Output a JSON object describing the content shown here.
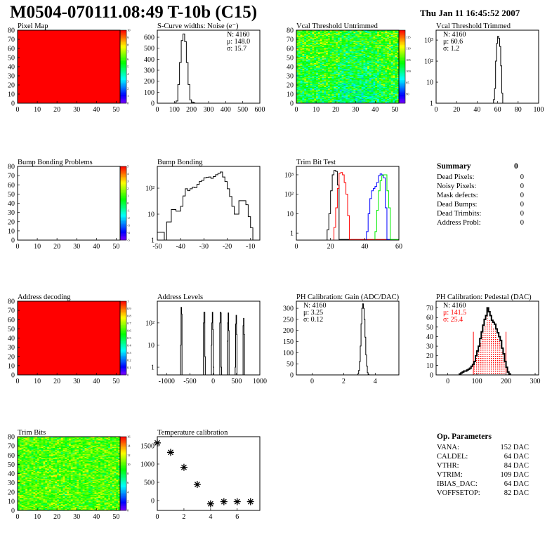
{
  "header": {
    "title": "M0504-070111.08:49 T-10b (C15)",
    "date": "Thu Jan 11 16:45:52 2007"
  },
  "palette": "rainbow",
  "chart_data": [
    {
      "id": "pixelmap",
      "type": "heatmap",
      "title": "Pixel Map",
      "xlim": [
        0,
        52
      ],
      "ylim": [
        0,
        80
      ],
      "xticks": [
        0,
        10,
        20,
        30,
        40,
        50
      ],
      "yticks": [
        0,
        10,
        20,
        30,
        40,
        50,
        60,
        70,
        80
      ],
      "zlim": [
        0,
        10
      ],
      "zticks": [
        0,
        1,
        2,
        3,
        4,
        5,
        6,
        7,
        8,
        9,
        10
      ],
      "fill": "uniform",
      "z_value": 10
    },
    {
      "id": "scurve",
      "type": "bar",
      "title": "S-Curve widths: Noise (e⁻)",
      "xlim": [
        0,
        600
      ],
      "ylim": [
        0,
        664
      ],
      "xticks": [
        0,
        100,
        200,
        300,
        400,
        500,
        600
      ],
      "yticks": [
        0,
        100,
        200,
        300,
        400,
        500,
        600
      ],
      "log": false,
      "stats": [
        "N: 4160",
        "μ: 148.0",
        "σ: 15.7"
      ],
      "series": [
        {
          "color": "#000000",
          "start": 100,
          "width": 10,
          "values": [
            2,
            20,
            170,
            370,
            570,
            630,
            560,
            370,
            170,
            30,
            10,
            5
          ]
        }
      ]
    },
    {
      "id": "vcal_untrimmed",
      "type": "heatmap",
      "title": "Vcal Threshold Untrimmed",
      "xlim": [
        0,
        52
      ],
      "ylim": [
        0,
        80
      ],
      "xticks": [
        0,
        10,
        20,
        30,
        40,
        50
      ],
      "yticks": [
        0,
        10,
        20,
        30,
        40,
        50,
        60,
        70,
        80
      ],
      "zlim": [
        86,
        118
      ],
      "zticks": [
        90,
        95,
        100,
        105,
        110,
        115
      ],
      "fill": "random"
    },
    {
      "id": "vcal_trimmed",
      "type": "bar",
      "title": "Vcal Threshold Trimmed",
      "xlim": [
        0,
        100
      ],
      "ylim": [
        1,
        2950
      ],
      "xticks": [
        0,
        20,
        40,
        60,
        80,
        100
      ],
      "yticks": [
        1,
        10,
        100,
        1000
      ],
      "ytick_labels": [
        "1",
        "10",
        "10²",
        "10³"
      ],
      "log": true,
      "stats": [
        "N: 4160",
        "μ: 60.6",
        "σ:  1.2"
      ],
      "series": [
        {
          "color": "#000000",
          "start": 56,
          "width": 1,
          "values": [
            1.5,
            5,
            100,
            700,
            1500,
            1200,
            500,
            60,
            3
          ]
        }
      ]
    },
    {
      "id": "bump_problems",
      "type": "heatmap",
      "title": "Bump Bonding Problems",
      "xlim": [
        0,
        52
      ],
      "ylim": [
        0,
        80
      ],
      "xticks": [
        0,
        10,
        20,
        30,
        40,
        50
      ],
      "yticks": [
        0,
        10,
        20,
        30,
        40,
        50,
        60,
        70,
        80
      ],
      "zlim": [
        -5,
        5
      ],
      "zticks": [
        -5,
        -4,
        -3,
        -2,
        -1,
        0,
        1,
        2,
        3,
        4,
        5
      ],
      "fill": "empty"
    },
    {
      "id": "bump_bonding",
      "type": "bar",
      "title": "Bump Bonding",
      "xlim": [
        -50,
        -6
      ],
      "ylim": [
        1,
        690
      ],
      "xticks": [
        -50,
        -40,
        -30,
        -20,
        -10
      ],
      "yticks": [
        1,
        10,
        100
      ],
      "ytick_labels": [
        "1",
        "10",
        "10²"
      ],
      "log": true,
      "series": [
        {
          "color": "#000000",
          "start": -50,
          "width": 1,
          "values": [
            2,
            2,
            2,
            0,
            5,
            5,
            15,
            15,
            13,
            13,
            20,
            50,
            95,
            80,
            95,
            110,
            105,
            140,
            180,
            200,
            250,
            260,
            270,
            240,
            280,
            330,
            370,
            420,
            270,
            180,
            95,
            48,
            20,
            10,
            10,
            33,
            33,
            33,
            23,
            8,
            3
          ]
        }
      ]
    },
    {
      "id": "trimbit_test",
      "type": "bar",
      "title": "Trim Bit Test",
      "xlim": [
        0,
        60
      ],
      "ylim": [
        0.44,
        2700
      ],
      "xticks": [
        0,
        20,
        40,
        60
      ],
      "yticks": [
        1,
        10,
        100,
        1000
      ],
      "ytick_labels": [
        "1",
        "10",
        "10²",
        "10³"
      ],
      "log": true,
      "series": [
        {
          "color": "#000000",
          "start": 18,
          "width": 1,
          "values": [
            1.5,
            10,
            150,
            1000,
            1700,
            1500,
            300
          ]
        },
        {
          "color": "#ff0000",
          "start": 22,
          "width": 1,
          "values": [
            2,
            20,
            200,
            1200,
            1300,
            1000,
            400,
            100,
            8
          ]
        },
        {
          "color": "#0000ff",
          "start": 41,
          "width": 1,
          "values": [
            1.2,
            10,
            60,
            150,
            200,
            250,
            400,
            900,
            1100,
            1000,
            700,
            20
          ]
        },
        {
          "color": "#00ee00",
          "start": 46,
          "width": 1,
          "values": [
            1.2,
            15,
            150,
            500,
            900,
            1000,
            1000,
            150,
            20
          ]
        }
      ]
    },
    {
      "id": "summary",
      "type": "table",
      "title": "Summary",
      "total": "0",
      "rows": [
        {
          "label": "Dead Pixels:",
          "value": "0"
        },
        {
          "label": "Noisy Pixels:",
          "value": "0"
        },
        {
          "label": "Mask defects:",
          "value": "0"
        },
        {
          "label": "Dead Bumps:",
          "value": "0"
        },
        {
          "label": "Dead Trimbits:",
          "value": "0"
        },
        {
          "label": "Address Probl:",
          "value": "0"
        }
      ]
    },
    {
      "id": "address_decoding",
      "type": "heatmap",
      "title": "Address decoding",
      "xlim": [
        0,
        52
      ],
      "ylim": [
        0,
        80
      ],
      "xticks": [
        0,
        10,
        20,
        30,
        40,
        50
      ],
      "yticks": [
        0,
        10,
        20,
        30,
        40,
        50,
        60,
        70,
        80
      ],
      "zlim": [
        0,
        1
      ],
      "zticks": [
        0,
        0.1,
        0.2,
        0.3,
        0.4,
        0.5,
        0.6,
        0.7,
        0.8,
        0.9,
        1
      ],
      "fill": "uniform",
      "z_value": 1
    },
    {
      "id": "address_levels",
      "type": "bar",
      "title": "Address Levels",
      "xlim": [
        -1200,
        1000
      ],
      "ylim": [
        0.45,
        950
      ],
      "xticks": [
        -1000,
        -500,
        0,
        500,
        1000
      ],
      "yticks": [
        1,
        10,
        100
      ],
      "ytick_labels": [
        "1",
        "10",
        "10²"
      ],
      "log": true,
      "series": [
        {
          "color": "#000000",
          "width": 10,
          "sparse": [
            [
              -700,
              10
            ],
            [
              -690,
              500
            ],
            [
              -680,
              250
            ],
            [
              -210,
              100
            ],
            [
              -200,
              300
            ],
            [
              -190,
              300
            ],
            [
              -180,
              3
            ],
            [
              -40,
              10
            ],
            [
              -30,
              100
            ],
            [
              -20,
              300
            ],
            [
              -10,
              50
            ],
            [
              0,
              1
            ],
            [
              140,
              100
            ],
            [
              150,
              300
            ],
            [
              160,
              280
            ],
            [
              170,
              1
            ],
            [
              300,
              15
            ],
            [
              310,
              100
            ],
            [
              320,
              280
            ],
            [
              330,
              45
            ],
            [
              470,
              1
            ],
            [
              480,
              90
            ],
            [
              490,
              220
            ],
            [
              500,
              30
            ],
            [
              640,
              75
            ],
            [
              650,
              160
            ],
            [
              660,
              30
            ]
          ]
        }
      ]
    },
    {
      "id": "ph_gain",
      "type": "bar",
      "title": "PH Calibration: Gain (ADC/DAC)",
      "xlim": [
        -1,
        5.5
      ],
      "ylim": [
        0,
        332
      ],
      "xticks": [
        0,
        2,
        4
      ],
      "yticks": [
        0,
        50,
        100,
        150,
        200,
        250,
        300
      ],
      "log": false,
      "stats": [
        "N: 4160",
        "μ: 3.25",
        "σ: 0.12"
      ],
      "series": [
        {
          "color": "#000000",
          "start": 2.9,
          "width": 0.05,
          "values": [
            5,
            20,
            60,
            130,
            230,
            300,
            320,
            300,
            250,
            170,
            90,
            40,
            10,
            2
          ]
        }
      ]
    },
    {
      "id": "ph_pedestal",
      "type": "bar",
      "title": "PH Calibration: Pedestal (DAC)",
      "xlim": [
        -40,
        312
      ],
      "ylim": [
        0,
        77
      ],
      "xticks": [
        0,
        100,
        200,
        300
      ],
      "yticks": [
        0,
        10,
        20,
        30,
        40,
        50,
        60,
        70
      ],
      "log": false,
      "stats": [
        "N: 4160"
      ],
      "fit_stats": [
        "μ: 141.5",
        "σ: 25.4"
      ],
      "fit_color": "#ff0000",
      "fit_range": [
        88,
        200
      ],
      "series": [
        {
          "color": "#000000",
          "start": 40,
          "width": 5,
          "values": [
            1,
            2,
            3,
            4,
            4,
            5,
            6,
            7,
            9,
            11,
            14,
            20,
            25,
            30,
            38,
            45,
            52,
            58,
            62,
            70,
            66,
            62,
            57,
            55,
            53,
            48,
            44,
            40,
            36,
            28,
            22,
            14,
            8,
            3,
            1
          ]
        }
      ]
    },
    {
      "id": "trim_bits",
      "type": "heatmap",
      "title": "Trim Bits",
      "xlim": [
        0,
        52
      ],
      "ylim": [
        0,
        80
      ],
      "xticks": [
        0,
        10,
        20,
        30,
        40,
        50
      ],
      "yticks": [
        0,
        10,
        20,
        30,
        40,
        50,
        60,
        70,
        80
      ],
      "zlim": [
        0,
        16
      ],
      "zticks": [
        0,
        2,
        4,
        6,
        8,
        10,
        12,
        14,
        16
      ],
      "fill": "random"
    },
    {
      "id": "temperature",
      "type": "scatter",
      "title": "Temperature calibration",
      "xlim": [
        0,
        7.7
      ],
      "ylim": [
        -270,
        1750
      ],
      "xticks": [
        0,
        2,
        4,
        6
      ],
      "yticks": [
        0,
        500,
        1000,
        1500
      ],
      "marker": "star",
      "x": [
        0,
        1,
        2,
        3,
        4,
        5,
        6,
        7
      ],
      "y": [
        1580,
        1320,
        910,
        440,
        -90,
        -30,
        -30,
        -30
      ]
    },
    {
      "id": "empty_panel",
      "type": "empty"
    },
    {
      "id": "op_params",
      "type": "table",
      "title": "Op. Parameters",
      "rows": [
        {
          "label": "VANA:",
          "value": "152 DAC"
        },
        {
          "label": "CALDEL:",
          "value": "64 DAC"
        },
        {
          "label": "VTHR:",
          "value": "84 DAC"
        },
        {
          "label": "VTRIM:",
          "value": "109 DAC"
        },
        {
          "label": "IBIAS_DAC:",
          "value": "64 DAC"
        },
        {
          "label": "VOFFSETOP:",
          "value": "82 DAC"
        }
      ]
    }
  ]
}
